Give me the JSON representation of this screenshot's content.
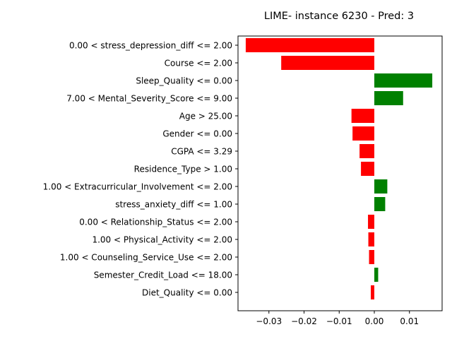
{
  "chart_data": {
    "type": "bar",
    "orientation": "horizontal",
    "title": "LIME- instance 6230 - Pred: 3",
    "xlabel": "",
    "ylabel": "",
    "xlim": [
      -0.0388,
      0.0193
    ],
    "xticks": [
      -0.03,
      -0.02,
      -0.01,
      0.0,
      0.01
    ],
    "xtick_labels": [
      "−0.03",
      "−0.02",
      "−0.01",
      "0.00",
      "0.01"
    ],
    "grid": false,
    "positive_color": "#008000",
    "negative_color": "#ff0000",
    "categories": [
      "0.00 < stress_depression_diff <= 2.00",
      "Course <= 2.00",
      "Sleep_Quality <= 0.00",
      "7.00 < Mental_Severity_Score <= 9.00",
      "Age > 25.00",
      "Gender <= 0.00",
      "CGPA <= 3.29",
      "Residence_Type > 1.00",
      "1.00 < Extracurricular_Involvement <= 2.00",
      "stress_anxiety_diff <= 1.00",
      "0.00 < Relationship_Status <= 2.00",
      "1.00 < Physical_Activity <= 2.00",
      "1.00 < Counseling_Service_Use <= 2.00",
      "Semester_Credit_Load <= 18.00",
      "Diet_Quality <= 0.00"
    ],
    "values": [
      -0.0366,
      -0.0265,
      0.0165,
      0.0082,
      -0.0065,
      -0.0062,
      -0.0042,
      -0.0038,
      0.0037,
      0.0031,
      -0.0018,
      -0.0017,
      -0.0015,
      0.0011,
      -0.001
    ]
  }
}
